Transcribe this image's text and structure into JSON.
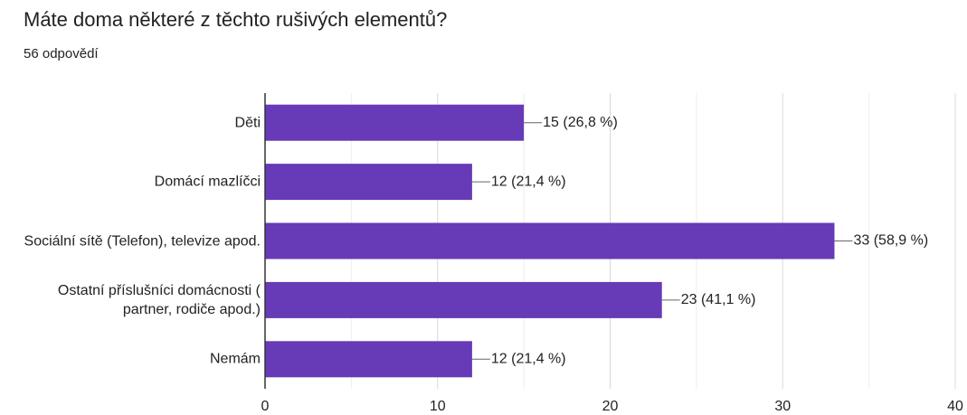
{
  "chart_data": {
    "type": "bar",
    "orientation": "horizontal",
    "title": "Máte doma některé z těchto rušivých elementů?",
    "subtitle": "56 odpovědí",
    "categories": [
      "Děti",
      "Domácí mazlíčci",
      "Sociální sítě (Telefon), televize apod.",
      "Ostatní příslušníci domácnosti ( partner, rodiče apod.)",
      "Nemám"
    ],
    "values": [
      15,
      12,
      33,
      23,
      12
    ],
    "value_labels": [
      "15 (26,8 %)",
      "12 (21,4 %)",
      "33 (58,9 %)",
      "23 (41,1 %)",
      "12 (21,4 %)"
    ],
    "color": "#673ab7",
    "xlim": [
      0,
      40
    ],
    "xticks": [
      0,
      10,
      20,
      30,
      40
    ],
    "minor_xticks": [
      5,
      15,
      25,
      35
    ],
    "grid": true
  }
}
